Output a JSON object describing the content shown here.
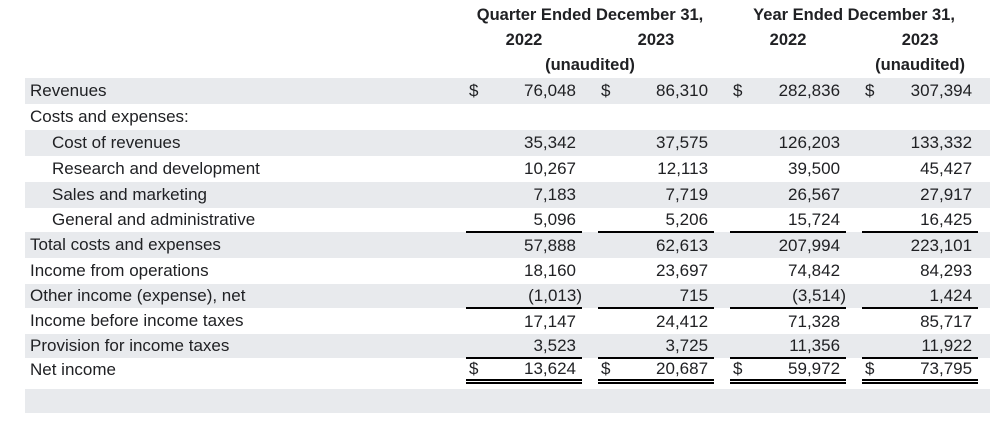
{
  "document": {
    "kind": "income-statement-table",
    "colors": {
      "row_shade": "#e8eaed",
      "text": "#202124",
      "rule": "#000000",
      "background": "#ffffff"
    },
    "header": {
      "groups": [
        {
          "title": "Quarter Ended December 31,",
          "year_left": "2022",
          "year_right": "2023",
          "note": "(unaudited)"
        },
        {
          "title": "Year Ended December 31,",
          "year_left": "2022",
          "year_right": "2023",
          "note": "(unaudited)"
        }
      ]
    },
    "rows": [
      {
        "label": "Revenues",
        "indent": 0,
        "shaded": true,
        "dollar": true,
        "values": [
          "76,048",
          "86,310",
          "282,836",
          "307,394"
        ],
        "rule_below": "none"
      },
      {
        "label": "Costs and expenses:",
        "indent": 0,
        "shaded": false,
        "dollar": false,
        "values": [
          "",
          "",
          "",
          ""
        ],
        "rule_below": "none"
      },
      {
        "label": "Cost of revenues",
        "indent": 1,
        "shaded": true,
        "dollar": false,
        "values": [
          "35,342",
          "37,575",
          "126,203",
          "133,332"
        ],
        "rule_below": "none"
      },
      {
        "label": "Research and development",
        "indent": 1,
        "shaded": false,
        "dollar": false,
        "values": [
          "10,267",
          "12,113",
          "39,500",
          "45,427"
        ],
        "rule_below": "none"
      },
      {
        "label": "Sales and marketing",
        "indent": 1,
        "shaded": true,
        "dollar": false,
        "values": [
          "7,183",
          "7,719",
          "26,567",
          "27,917"
        ],
        "rule_below": "none"
      },
      {
        "label": "General and administrative",
        "indent": 1,
        "shaded": false,
        "dollar": false,
        "values": [
          "5,096",
          "5,206",
          "15,724",
          "16,425"
        ],
        "rule_below": "single"
      },
      {
        "label": "Total costs and expenses",
        "indent": 0,
        "shaded": true,
        "dollar": false,
        "values": [
          "57,888",
          "62,613",
          "207,994",
          "223,101"
        ],
        "rule_below": "none"
      },
      {
        "label": "Income from operations",
        "indent": 0,
        "shaded": false,
        "dollar": false,
        "values": [
          "18,160",
          "23,697",
          "74,842",
          "84,293"
        ],
        "rule_below": "none"
      },
      {
        "label": "Other income (expense), net",
        "indent": 0,
        "shaded": true,
        "dollar": false,
        "values": [
          "(1,013)",
          "715",
          "(3,514)",
          "1,424"
        ],
        "rule_below": "single"
      },
      {
        "label": "Income before income taxes",
        "indent": 0,
        "shaded": false,
        "dollar": false,
        "values": [
          "17,147",
          "24,412",
          "71,328",
          "85,717"
        ],
        "rule_below": "none"
      },
      {
        "label": "Provision for income taxes",
        "indent": 0,
        "shaded": true,
        "dollar": false,
        "values": [
          "3,523",
          "3,725",
          "11,356",
          "11,922"
        ],
        "rule_below": "single"
      },
      {
        "label": "Net income",
        "indent": 0,
        "shaded": false,
        "dollar": true,
        "values": [
          "13,624",
          "20,687",
          "59,972",
          "73,795"
        ],
        "rule_below": "double"
      }
    ]
  }
}
